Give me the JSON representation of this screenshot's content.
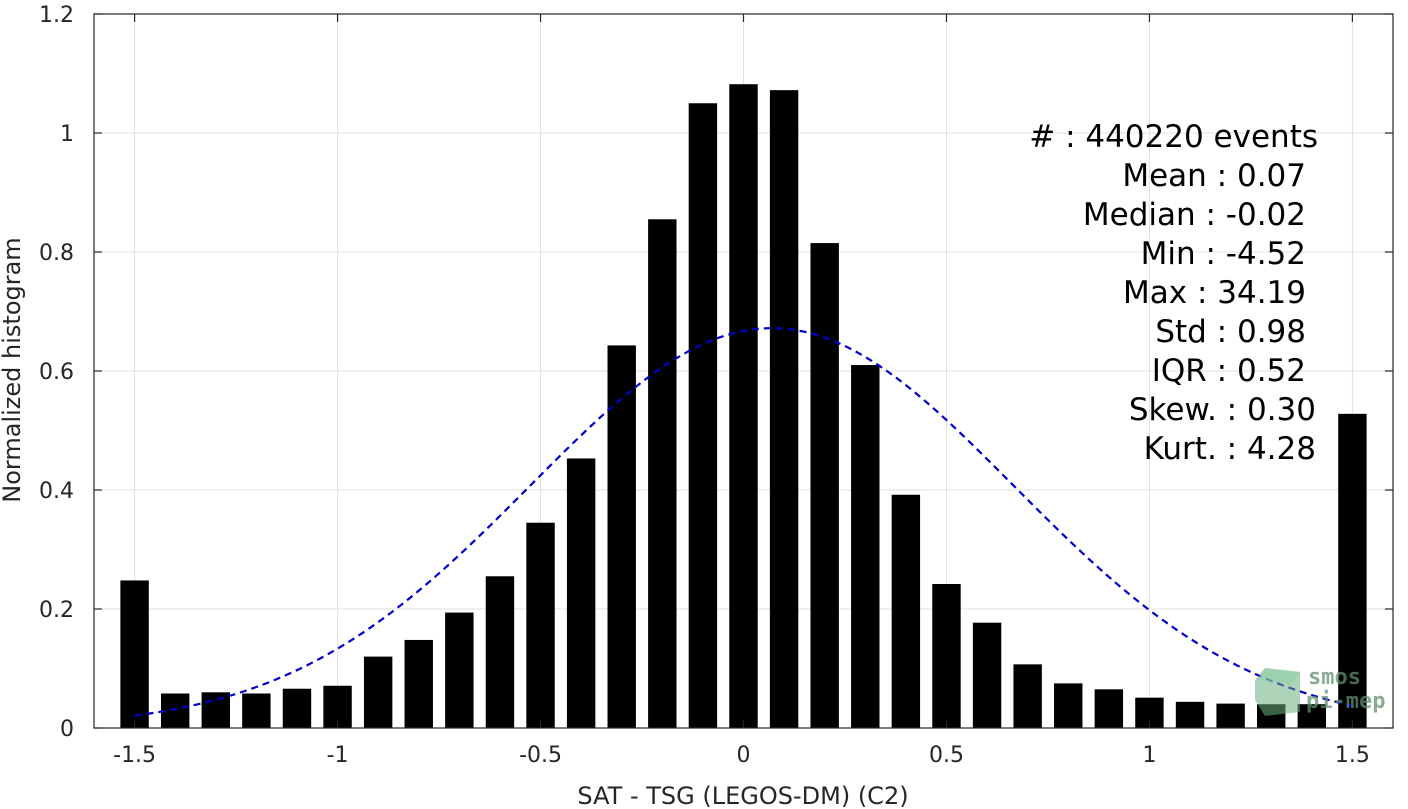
{
  "chart_data": {
    "type": "bar",
    "title": "",
    "xlabel": "SAT - TSG (LEGOS-DM) (C2)",
    "ylabel": "Normalized histogram",
    "xlim": [
      -1.6,
      1.6
    ],
    "ylim": [
      0,
      1.2
    ],
    "grid": true,
    "bar_width": 0.07,
    "bar_color": "#000000",
    "x": [
      -1.5,
      -1.4,
      -1.3,
      -1.2,
      -1.1,
      -1.0,
      -0.9,
      -0.8,
      -0.7,
      -0.6,
      -0.5,
      -0.4,
      -0.3,
      -0.2,
      -0.1,
      0.0,
      0.1,
      0.2,
      0.3,
      0.4,
      0.5,
      0.6,
      0.7,
      0.8,
      0.9,
      1.0,
      1.1,
      1.2,
      1.3,
      1.4,
      1.5
    ],
    "values": [
      0.248,
      0.058,
      0.06,
      0.058,
      0.066,
      0.071,
      0.12,
      0.148,
      0.194,
      0.255,
      0.345,
      0.453,
      0.643,
      0.855,
      1.05,
      1.082,
      1.072,
      0.815,
      0.61,
      0.392,
      0.242,
      0.177,
      0.107,
      0.075,
      0.065,
      0.051,
      0.044,
      0.041,
      0.04,
      0.04,
      0.528
    ],
    "xticks": [
      -1.5,
      -1,
      -0.5,
      0,
      0.5,
      1,
      1.5
    ],
    "xtick_labels": [
      "-1.5",
      "-1",
      "-0.5",
      "0",
      "0.5",
      "1",
      "1.5"
    ],
    "yticks": [
      0,
      0.2,
      0.4,
      0.6,
      0.8,
      1,
      1.2
    ],
    "ytick_labels": [
      "0",
      "0.2",
      "0.4",
      "0.6",
      "0.8",
      "1",
      "1.2"
    ],
    "fit_curve": {
      "type": "normal",
      "mean": 0.07,
      "std": 0.595,
      "peak": 0.672,
      "x_range": [
        -1.5,
        1.5
      ],
      "color": "#0000cc",
      "style": "dashed"
    },
    "annotations": [
      "#  : 440220 events",
      "Mean : 0.07",
      "Median : -0.02",
      "Min : -4.52",
      "Max : 34.19",
      "Std : 0.98",
      "IQR : 0.52",
      "Skew. : 0.30",
      "Kurt. : 4.28"
    ]
  },
  "logo": {
    "line1": "smos",
    "line2": "pi-mep"
  }
}
